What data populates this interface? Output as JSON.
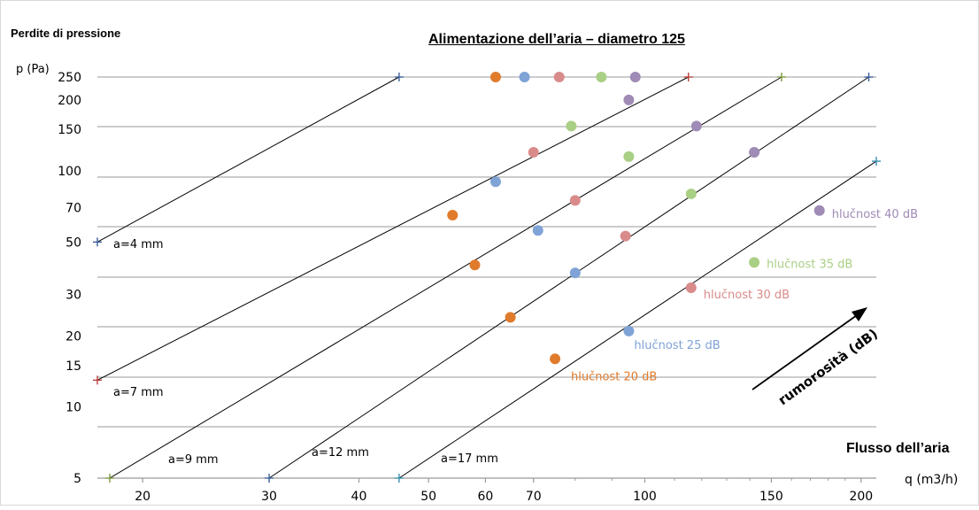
{
  "chart_data": {
    "type": "line",
    "title": "Alimentazione dell’aria – diametro 125",
    "ylabel_title": "Perdite di pressione",
    "ylabel": "p (Pa)",
    "xlabel_title": "Flusso dell’aria",
    "xlabel": "q (m3/h)",
    "x_scale": "log",
    "y_scale": "log",
    "xlim": [
      17.3,
      210
    ],
    "ylim": [
      5,
      250
    ],
    "x_ticks": [
      20,
      30,
      40,
      50,
      60,
      70,
      100,
      150,
      200
    ],
    "y_ticks": [
      5,
      10,
      15,
      20,
      30,
      50,
      70,
      100,
      150,
      200,
      250
    ],
    "grid": "horizontal",
    "series": [
      {
        "name": "a=4 mm",
        "color": "#3a5f9a",
        "x": [
          17.3,
          45.5
        ],
        "y": [
          50,
          250
        ]
      },
      {
        "name": "a=7 mm",
        "color": "#b8403a",
        "x": [
          17.3,
          115
        ],
        "y": [
          13,
          250
        ]
      },
      {
        "name": "a=9 mm",
        "color": "#7e9a40",
        "x": [
          18,
          155
        ],
        "y": [
          5,
          250
        ]
      },
      {
        "name": "a=12 mm",
        "color": "#3a5f9a",
        "x": [
          30,
          205
        ],
        "y": [
          5,
          250
        ]
      },
      {
        "name": "a=17 mm",
        "color": "#3a8fb0",
        "x": [
          45.5,
          210
        ],
        "y": [
          5,
          110
        ]
      }
    ],
    "noise_series": [
      {
        "name": "hlučnost 20 dB",
        "color": "#e07b2c",
        "x": [
          62,
          54,
          58,
          65,
          75
        ],
        "y": [
          250,
          65,
          40,
          24,
          16
        ]
      },
      {
        "name": "hlučnost 25 dB",
        "color": "#7fa3d6",
        "x": [
          68,
          62,
          71,
          80,
          95
        ],
        "y": [
          250,
          90,
          56,
          37,
          21
        ]
      },
      {
        "name": "hlučnost 30 dB",
        "color": "#d98b8b",
        "x": [
          76,
          70,
          80,
          94,
          116
        ],
        "y": [
          250,
          120,
          75,
          53,
          32
        ]
      },
      {
        "name": "hlučnost 35 dB",
        "color": "#a9cf85",
        "x": [
          87,
          79,
          95,
          116,
          142
        ],
        "y": [
          250,
          155,
          115,
          80,
          41
        ]
      },
      {
        "name": "hlučnost 40 dB",
        "color": "#9f8bb5",
        "x": [
          97,
          95,
          118,
          142,
          175
        ],
        "y": [
          250,
          200,
          155,
          120,
          68
        ]
      }
    ],
    "annotations": {
      "arrow_label": "rumorosità (dB)"
    }
  }
}
